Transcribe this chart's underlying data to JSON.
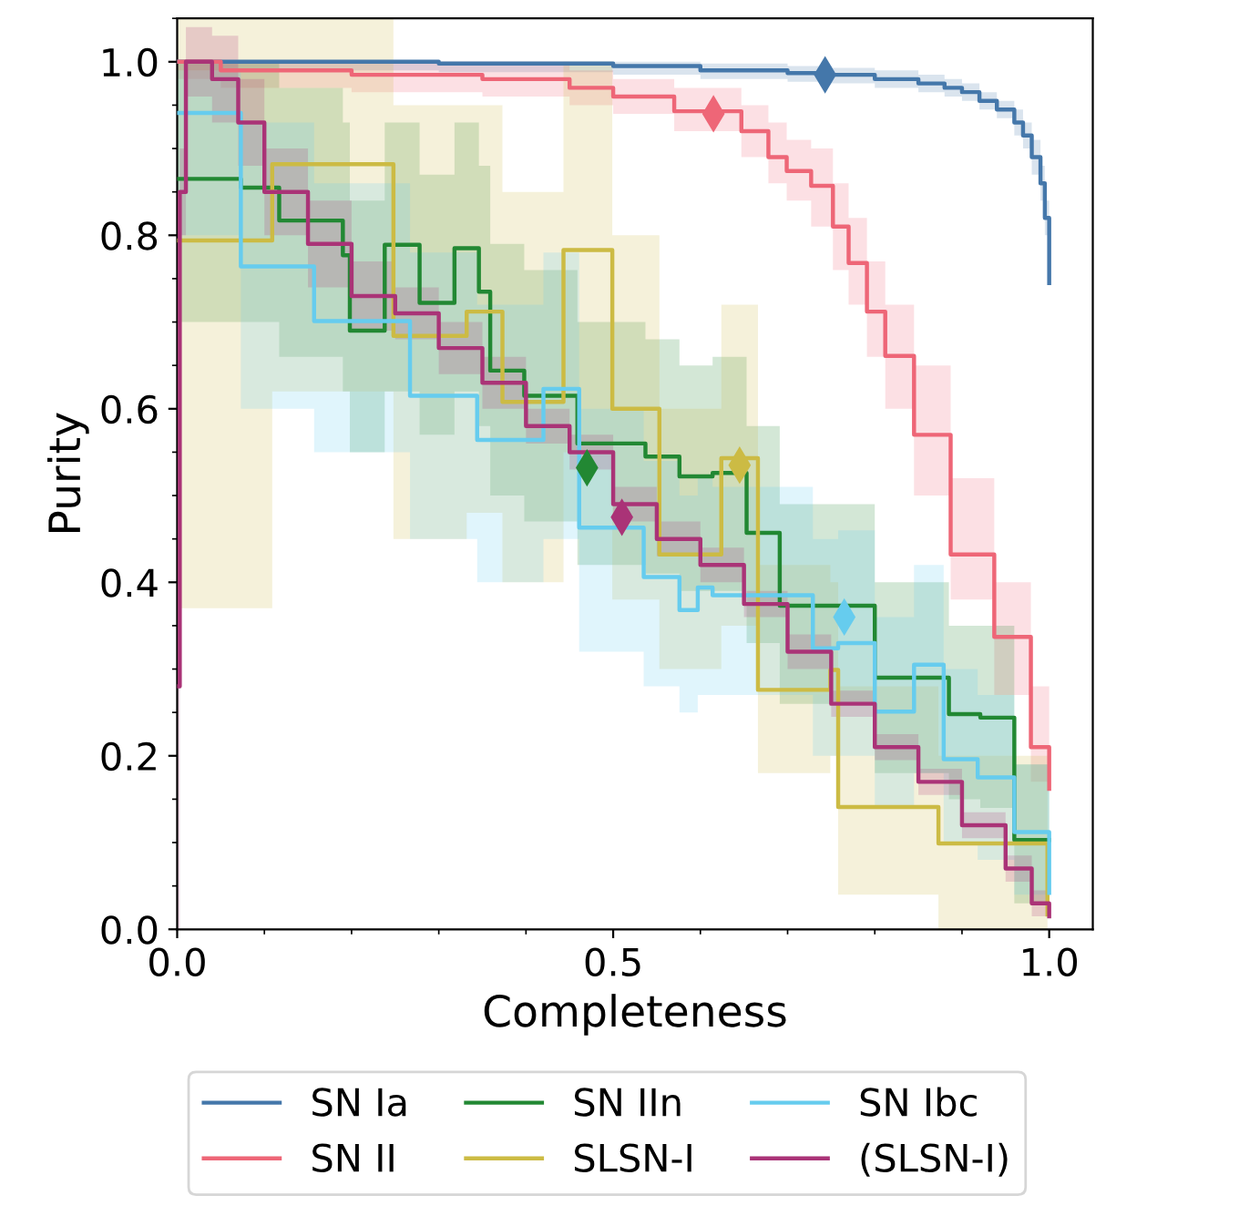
{
  "chart_data": {
    "type": "step",
    "xlabel": "Completeness",
    "ylabel": "Purity",
    "xlim": [
      0,
      1.05
    ],
    "ylim": [
      0,
      1.05
    ],
    "xticks": [
      {
        "value": 0,
        "label": "0.0"
      },
      {
        "value": 0.5,
        "label": "0.5"
      },
      {
        "value": 1,
        "label": "1.0"
      }
    ],
    "yticks": [
      {
        "value": 0,
        "label": "0.0"
      },
      {
        "value": 0.2,
        "label": "0.2"
      },
      {
        "value": 0.4,
        "label": "0.4"
      },
      {
        "value": 0.6,
        "label": "0.6"
      },
      {
        "value": 0.8,
        "label": "0.8"
      },
      {
        "value": 1,
        "label": "1.0"
      }
    ],
    "grid": false,
    "legend": "bottom",
    "line_style": "solid",
    "marker": "none",
    "series": [
      {
        "name": "SN Ia",
        "color": "#4477aa",
        "x": [
          0,
          0.3,
          0.5,
          0.6,
          0.7,
          0.75,
          0.8,
          0.85,
          0.88,
          0.9,
          0.92,
          0.94,
          0.96,
          0.97,
          0.98,
          0.99,
          0.995,
          1.0
        ],
        "values": [
          1.0,
          0.998,
          0.995,
          0.99,
          0.987,
          0.985,
          0.98,
          0.975,
          0.97,
          0.965,
          0.955,
          0.945,
          0.93,
          0.915,
          0.89,
          0.86,
          0.82,
          0.745
        ],
        "lower": [
          0.99,
          0.988,
          0.985,
          0.98,
          0.977,
          0.975,
          0.97,
          0.965,
          0.96,
          0.955,
          0.945,
          0.935,
          0.915,
          0.9,
          0.87,
          0.84,
          0.8,
          0.745
        ],
        "upper": [
          1.0,
          1.0,
          1.0,
          0.998,
          0.995,
          0.993,
          0.99,
          0.985,
          0.98,
          0.975,
          0.965,
          0.955,
          0.945,
          0.93,
          0.91,
          0.88,
          0.84,
          0.76
        ]
      },
      {
        "name": "SN II",
        "color": "#ee6677",
        "x": [
          0,
          0.05,
          0.2,
          0.35,
          0.45,
          0.5,
          0.57,
          0.647,
          0.678,
          0.699,
          0.727,
          0.752,
          0.77,
          0.791,
          0.812,
          0.845,
          0.887,
          0.937,
          0.979,
          1.0
        ],
        "values": [
          1.0,
          0.99,
          0.985,
          0.98,
          0.97,
          0.96,
          0.943,
          0.92,
          0.89,
          0.874,
          0.857,
          0.81,
          0.768,
          0.712,
          0.661,
          0.57,
          0.432,
          0.337,
          0.21,
          0.162
        ],
        "lower": [
          0.98,
          0.97,
          0.965,
          0.96,
          0.95,
          0.94,
          0.92,
          0.89,
          0.86,
          0.84,
          0.81,
          0.76,
          0.72,
          0.66,
          0.6,
          0.5,
          0.38,
          0.27,
          0.17,
          0.12
        ],
        "upper": [
          1.0,
          1.0,
          1.0,
          1.0,
          0.99,
          0.98,
          0.97,
          0.95,
          0.93,
          0.91,
          0.9,
          0.86,
          0.82,
          0.77,
          0.72,
          0.65,
          0.52,
          0.4,
          0.28,
          0.2
        ]
      },
      {
        "name": "SN IIn",
        "color": "#228833",
        "x": [
          0,
          0.073,
          0.117,
          0.19,
          0.198,
          0.238,
          0.278,
          0.318,
          0.346,
          0.359,
          0.398,
          0.459,
          0.537,
          0.576,
          0.614,
          0.653,
          0.691,
          0.8,
          0.885,
          0.921,
          0.96,
          1.0
        ],
        "values": [
          0.865,
          0.855,
          0.817,
          0.777,
          0.69,
          0.789,
          0.722,
          0.785,
          0.735,
          0.644,
          0.615,
          0.56,
          0.545,
          0.522,
          0.526,
          0.457,
          0.373,
          0.29,
          0.248,
          0.244,
          0.103,
          0.103
        ],
        "lower": [
          0.7,
          0.7,
          0.66,
          0.62,
          0.55,
          0.62,
          0.57,
          0.62,
          0.58,
          0.5,
          0.47,
          0.42,
          0.41,
          0.39,
          0.39,
          0.33,
          0.26,
          0.18,
          0.15,
          0.14,
          0.03,
          0.03
        ],
        "upper": [
          1.0,
          1.0,
          0.97,
          0.93,
          0.84,
          0.93,
          0.87,
          0.93,
          0.88,
          0.79,
          0.76,
          0.7,
          0.68,
          0.65,
          0.66,
          0.58,
          0.49,
          0.4,
          0.35,
          0.35,
          0.19,
          0.19
        ]
      },
      {
        "name": "SLSN-I",
        "color": "#ccbb44",
        "x": [
          0,
          0.109,
          0.248,
          0.332,
          0.373,
          0.443,
          0.499,
          0.553,
          0.624,
          0.666,
          0.749,
          0.758,
          0.873,
          0.998
        ],
        "values": [
          0.794,
          0.882,
          0.684,
          0.712,
          0.608,
          0.783,
          0.6,
          0.432,
          0.543,
          0.276,
          0.299,
          0.141,
          0.099,
          0.017
        ],
        "lower": [
          0.37,
          0.62,
          0.45,
          0.48,
          0.4,
          0.55,
          0.38,
          0.3,
          0.35,
          0.18,
          0.2,
          0.04,
          0.0,
          0.0
        ],
        "upper": [
          1.05,
          1.05,
          0.95,
          0.95,
          0.85,
          1.0,
          0.8,
          0.6,
          0.72,
          0.42,
          0.4,
          0.28,
          0.2,
          0.07
        ]
      },
      {
        "name": "SN Ibc",
        "color": "#66ccee",
        "x": [
          0,
          0.073,
          0.157,
          0.267,
          0.344,
          0.42,
          0.461,
          0.535,
          0.576,
          0.597,
          0.614,
          0.729,
          0.758,
          0.8,
          0.845,
          0.879,
          0.918,
          0.96,
          1.0
        ],
        "values": [
          0.941,
          0.764,
          0.701,
          0.615,
          0.564,
          0.623,
          0.463,
          0.406,
          0.368,
          0.394,
          0.385,
          0.324,
          0.33,
          0.251,
          0.305,
          0.196,
          0.175,
          0.112,
          0.042
        ],
        "lower": [
          0.8,
          0.6,
          0.55,
          0.45,
          0.4,
          0.45,
          0.32,
          0.28,
          0.25,
          0.27,
          0.27,
          0.2,
          0.2,
          0.14,
          0.18,
          0.1,
          0.08,
          0.04,
          0.0
        ],
        "upper": [
          0.99,
          0.93,
          0.86,
          0.78,
          0.72,
          0.78,
          0.6,
          0.54,
          0.5,
          0.52,
          0.51,
          0.45,
          0.46,
          0.36,
          0.42,
          0.3,
          0.27,
          0.19,
          0.11
        ]
      },
      {
        "name": "(SLSN-I)",
        "color": "#aa3377",
        "x": [
          0,
          0.003,
          0.01,
          0.02,
          0.04,
          0.07,
          0.1,
          0.15,
          0.2,
          0.25,
          0.3,
          0.35,
          0.4,
          0.45,
          0.5,
          0.55,
          0.6,
          0.65,
          0.7,
          0.75,
          0.8,
          0.85,
          0.9,
          0.95,
          0.98,
          1.0
        ],
        "values": [
          0.28,
          0.85,
          1.0,
          1.0,
          0.98,
          0.93,
          0.85,
          0.79,
          0.73,
          0.71,
          0.67,
          0.63,
          0.58,
          0.55,
          0.49,
          0.45,
          0.42,
          0.375,
          0.32,
          0.26,
          0.21,
          0.17,
          0.12,
          0.07,
          0.03,
          0.015
        ],
        "lower": [
          0.0,
          0.8,
          0.96,
          0.96,
          0.93,
          0.88,
          0.8,
          0.74,
          0.69,
          0.68,
          0.64,
          0.6,
          0.56,
          0.53,
          0.47,
          0.43,
          0.4,
          0.36,
          0.3,
          0.245,
          0.195,
          0.155,
          0.105,
          0.055,
          0.015,
          0.0
        ],
        "upper": [
          0.3,
          0.9,
          1.04,
          1.04,
          1.03,
          0.98,
          0.9,
          0.84,
          0.77,
          0.74,
          0.7,
          0.66,
          0.6,
          0.57,
          0.51,
          0.47,
          0.44,
          0.39,
          0.34,
          0.275,
          0.225,
          0.185,
          0.135,
          0.085,
          0.045,
          0.03
        ]
      },
      {
        "type": "scatter",
        "marker": "diamond",
        "x": [
          0.743,
          0.615,
          0.47,
          0.645,
          0.765,
          0.51
        ],
        "values": [
          0.985,
          0.94,
          0.532,
          0.535,
          0.36,
          0.475
        ],
        "colors": [
          "#4477aa",
          "#ee6677",
          "#228833",
          "#ccbb44",
          "#66ccee",
          "#aa3377"
        ]
      }
    ]
  }
}
